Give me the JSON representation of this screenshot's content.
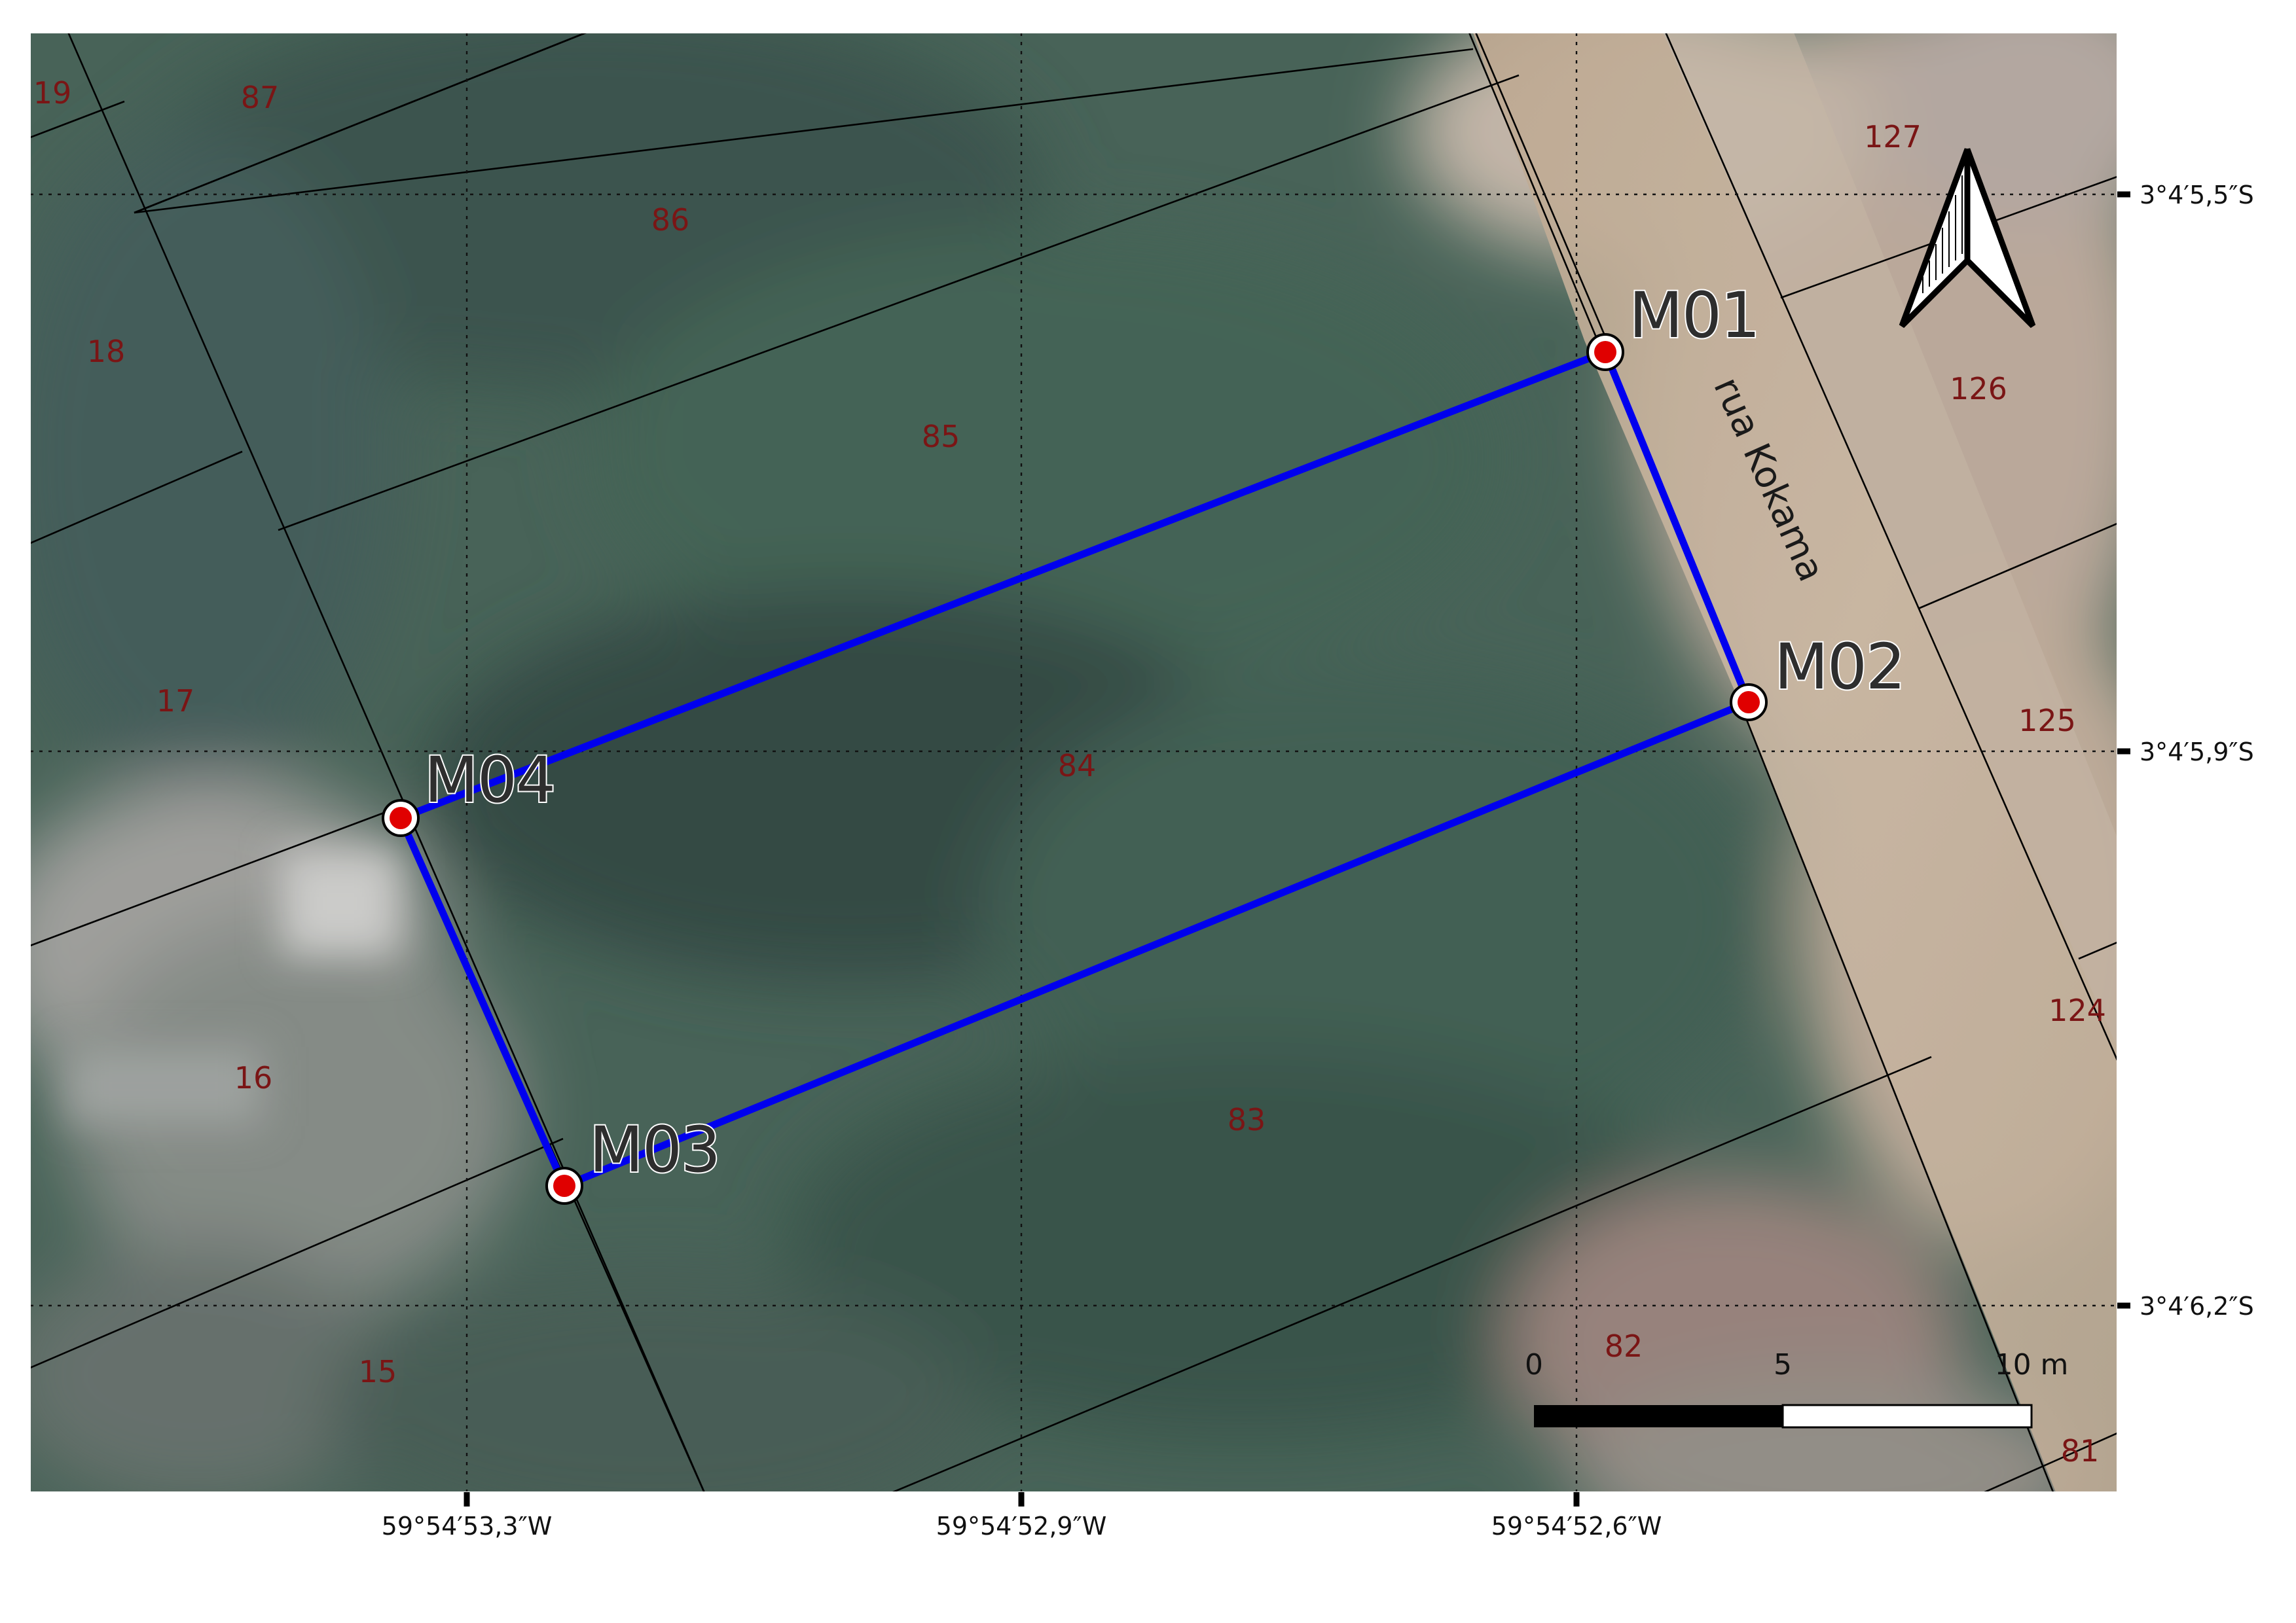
{
  "map": {
    "street_name": "rua Kokama",
    "lots": [
      {
        "id": "lot-19",
        "label": "19"
      },
      {
        "id": "lot-87",
        "label": "87"
      },
      {
        "id": "lot-86",
        "label": "86"
      },
      {
        "id": "lot-18",
        "label": "18"
      },
      {
        "id": "lot-85",
        "label": "85"
      },
      {
        "id": "lot-17",
        "label": "17"
      },
      {
        "id": "lot-84",
        "label": "84"
      },
      {
        "id": "lot-16",
        "label": "16"
      },
      {
        "id": "lot-83",
        "label": "83"
      },
      {
        "id": "lot-15",
        "label": "15"
      },
      {
        "id": "lot-82",
        "label": "82"
      },
      {
        "id": "lot-81",
        "label": "81"
      },
      {
        "id": "lot-127",
        "label": "127"
      },
      {
        "id": "lot-126",
        "label": "126"
      },
      {
        "id": "lot-125",
        "label": "125"
      },
      {
        "id": "lot-124",
        "label": "124"
      }
    ],
    "markers": [
      {
        "id": "M01",
        "label": "M01"
      },
      {
        "id": "M02",
        "label": "M02"
      },
      {
        "id": "M03",
        "label": "M03"
      },
      {
        "id": "M04",
        "label": "M04"
      }
    ],
    "latitude_labels": [
      "3°4′5,5″S",
      "3°4′5,9″S",
      "3°4′6,2″S"
    ],
    "longitude_labels": [
      "59°54′53,3″W",
      "59°54′52,9″W",
      "59°54′52,6″W"
    ],
    "scale_bar": {
      "labels": [
        "0",
        "5",
        "10 m"
      ]
    },
    "north_arrow": {
      "icon": "north-arrow-icon"
    },
    "colors": {
      "boundary": "#0000ee",
      "marker_fill": "#e00000",
      "lot_label": "#7a1515",
      "road": "#cdb9a2"
    }
  }
}
